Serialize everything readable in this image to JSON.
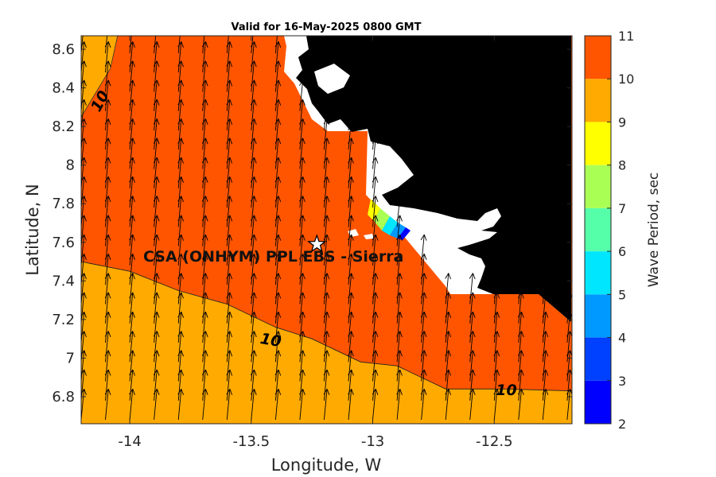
{
  "chart_data": {
    "type": "contour-map",
    "title": "Valid for 16-May-2025 0800 GMT",
    "xlabel": "Longitude, W",
    "ylabel": "Latitude, N",
    "xlim": [
      -14.2,
      -12.18
    ],
    "ylim": [
      6.66,
      8.67
    ],
    "x_ticks": [
      -14,
      -13.5,
      -13,
      -12.5
    ],
    "x_tick_labels": [
      "-14",
      "-13.5",
      "-13",
      "-12.5"
    ],
    "y_ticks": [
      6.8,
      7,
      7.2,
      7.4,
      7.6,
      7.8,
      8,
      8.2,
      8.4,
      8.6
    ],
    "y_tick_labels": [
      "6.8",
      "7",
      "7.2",
      "7.4",
      "7.6",
      "7.8",
      "8",
      "8.2",
      "8.4",
      "8.6"
    ],
    "colorbar": {
      "label": "Wave Period, sec",
      "ticks": [
        2,
        3,
        4,
        5,
        6,
        7,
        8,
        9,
        10,
        11
      ],
      "tick_labels": [
        "2",
        "3",
        "4",
        "5",
        "6",
        "7",
        "8",
        "9",
        "10",
        "11"
      ],
      "bands": [
        {
          "from": 2,
          "to": 3,
          "color": "#0000ff"
        },
        {
          "from": 3,
          "to": 4,
          "color": "#0040ff"
        },
        {
          "from": 4,
          "to": 5,
          "color": "#0099ff"
        },
        {
          "from": 5,
          "to": 6,
          "color": "#00e6ff"
        },
        {
          "from": 6,
          "to": 7,
          "color": "#55ffaa"
        },
        {
          "from": 7,
          "to": 8,
          "color": "#aaff55"
        },
        {
          "from": 8,
          "to": 9,
          "color": "#ffff00"
        },
        {
          "from": 9,
          "to": 10,
          "color": "#ffaa00"
        },
        {
          "from": 10,
          "to": 11,
          "color": "#ff5500"
        }
      ]
    },
    "contour_labels": [
      {
        "text": "10",
        "lon": -14.12,
        "lat": 8.33,
        "angle": -62
      },
      {
        "text": "10",
        "lon": -13.42,
        "lat": 7.09,
        "angle": 10
      },
      {
        "text": "10",
        "lon": -12.45,
        "lat": 6.83,
        "angle": 0
      }
    ],
    "region_upper": {
      "label": "10-11",
      "color": "#ff5500"
    },
    "region_lower": {
      "label": "9-10",
      "color": "#ffaa00"
    },
    "contour_10_line": [
      [
        -14.2,
        7.5
      ],
      [
        -14.0,
        7.45
      ],
      [
        -13.8,
        7.35
      ],
      [
        -13.6,
        7.28
      ],
      [
        -13.4,
        7.16
      ],
      [
        -13.25,
        7.1
      ],
      [
        -13.05,
        6.98
      ],
      [
        -12.9,
        6.96
      ],
      [
        -12.7,
        6.84
      ],
      [
        -12.45,
        6.84
      ],
      [
        -12.18,
        6.83
      ]
    ],
    "contour_10_corner": [
      [
        -14.2,
        8.25
      ],
      [
        -14.08,
        8.5
      ],
      [
        -14.05,
        8.67
      ],
      [
        -14.2,
        8.67
      ]
    ],
    "land_boundary": [
      [
        -13.37,
        8.67
      ],
      [
        -13.37,
        8.42
      ],
      [
        -13.18,
        8.18
      ],
      [
        -13.0,
        8.18
      ],
      [
        -13.0,
        7.84
      ],
      [
        -12.85,
        7.62
      ],
      [
        -12.67,
        7.33
      ],
      [
        -12.33,
        7.33
      ],
      [
        -12.18,
        7.18
      ],
      [
        -12.18,
        8.67
      ]
    ],
    "wave_vectors": {
      "dlon": 0.012,
      "dlat": 0.16,
      "note_direction": "toward north-northeast"
    },
    "site": {
      "name": "CSA (ONHYM) PPL EBS - Sierra",
      "lon": -13.23,
      "lat": 7.59
    }
  }
}
